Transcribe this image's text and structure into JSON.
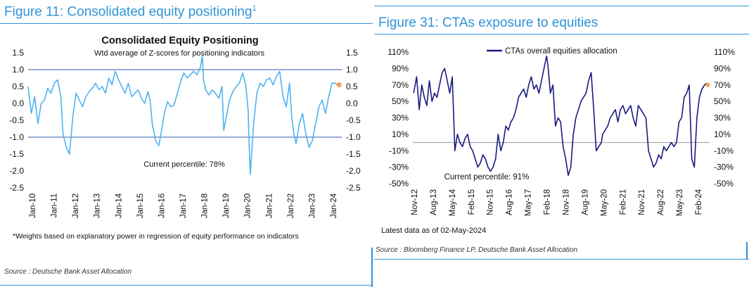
{
  "left": {
    "figure_title": "Figure 11: Consolidated equity positioning",
    "figure_sup": "1",
    "footnote": "*Weights based on explanatory power in regression of equity performance on indicators",
    "source": "Source : Deutsche Bank Asset Allocation"
  },
  "right": {
    "figure_title": "Figure 31: CTAs exposure to equities",
    "latest": "Latest data as of 02-May-2024",
    "source": "Source : Bloomberg Finance LP, Deutsche Bank Asset Allocation"
  },
  "chart_data": [
    {
      "type": "line",
      "title": "Consolidated Equity Positioning",
      "subtitle": "Wtd average of Z-scores for positioning indicators",
      "annotation": "Current percentile: 78%",
      "ylim": [
        -2.5,
        1.5
      ],
      "y_ticks": [
        "1.5",
        "1.0",
        "0.5",
        "0.0",
        "-0.5",
        "-1.0",
        "-1.5",
        "-2.0",
        "-2.5"
      ],
      "x_ticks": [
        "Jan-10",
        "Jan-11",
        "Jan-12",
        "Jan-13",
        "Jan-14",
        "Jan-15",
        "Jan-16",
        "Jan-17",
        "Jan-18",
        "Jan-19",
        "Jan-20",
        "Jan-21",
        "Jan-22",
        "Jan-23",
        "Jan-24"
      ],
      "reference_lines": [
        1.0,
        -1.0
      ],
      "line_color": "#4fb3ef",
      "marker_color": "#f5a04a",
      "series": [
        {
          "x": [
            2010.0,
            2010.15,
            2010.3,
            2010.45,
            2010.6,
            2010.75,
            2010.9,
            2011.05,
            2011.2,
            2011.35,
            2011.5,
            2011.6,
            2011.75,
            2011.9,
            2012.05,
            2012.2,
            2012.35,
            2012.5,
            2012.65,
            2012.8,
            2012.95,
            2013.1,
            2013.25,
            2013.4,
            2013.55,
            2013.7,
            2013.85,
            2014.0,
            2014.15,
            2014.3,
            2014.45,
            2014.6,
            2014.75,
            2014.9,
            2015.05,
            2015.2,
            2015.35,
            2015.5,
            2015.6,
            2015.7,
            2015.85,
            2016.0,
            2016.1,
            2016.25,
            2016.4,
            2016.55,
            2016.7,
            2016.85,
            2017.0,
            2017.15,
            2017.3,
            2017.45,
            2017.6,
            2017.75,
            2017.9,
            2018.0,
            2018.05,
            2018.15,
            2018.3,
            2018.45,
            2018.6,
            2018.75,
            2018.9,
            2018.98,
            2019.1,
            2019.25,
            2019.4,
            2019.55,
            2019.7,
            2019.85,
            2020.0,
            2020.1,
            2020.15,
            2020.2,
            2020.35,
            2020.5,
            2020.65,
            2020.8,
            2020.95,
            2021.1,
            2021.25,
            2021.4,
            2021.55,
            2021.7,
            2021.85,
            2022.0,
            2022.1,
            2022.2,
            2022.3,
            2022.45,
            2022.6,
            2022.75,
            2022.9,
            2023.05,
            2023.2,
            2023.35,
            2023.5,
            2023.65,
            2023.8,
            2023.95,
            2024.1,
            2024.25
          ],
          "y": [
            0.5,
            -0.3,
            0.2,
            -0.6,
            0.0,
            0.1,
            0.45,
            0.3,
            0.6,
            0.7,
            0.2,
            -0.9,
            -1.3,
            -1.5,
            -0.4,
            0.3,
            0.1,
            -0.1,
            0.2,
            0.35,
            0.45,
            0.6,
            0.4,
            0.5,
            0.3,
            0.75,
            0.55,
            0.95,
            0.7,
            0.5,
            0.3,
            0.6,
            0.2,
            0.3,
            0.4,
            0.15,
            0.0,
            0.35,
            0.1,
            -0.6,
            -1.1,
            -1.25,
            -0.9,
            -0.3,
            0.05,
            -0.1,
            -0.05,
            0.3,
            0.65,
            0.9,
            0.75,
            0.85,
            0.95,
            0.85,
            1.05,
            1.4,
            0.7,
            0.4,
            0.25,
            0.4,
            0.3,
            0.15,
            0.5,
            -0.8,
            -0.4,
            0.1,
            0.35,
            0.5,
            0.6,
            0.9,
            0.5,
            -0.2,
            -1.3,
            -2.1,
            -0.6,
            0.3,
            0.6,
            0.5,
            0.7,
            0.75,
            0.55,
            0.8,
            0.95,
            0.2,
            -0.1,
            0.6,
            -0.4,
            -0.9,
            -1.2,
            -0.6,
            -0.3,
            -0.9,
            -1.3,
            -1.1,
            -0.6,
            -0.1,
            0.1,
            -0.3,
            0.2,
            0.6,
            0.6,
            0.5
          ]
        }
      ],
      "current_marker": {
        "x": 2024.28,
        "y": 0.55
      }
    },
    {
      "type": "line",
      "title": "",
      "annotation": "Current percentile: 91%",
      "ylim": [
        -50,
        110
      ],
      "y_ticks": [
        "110%",
        "90%",
        "70%",
        "50%",
        "30%",
        "10%",
        "-10%",
        "-30%",
        "-50%"
      ],
      "x_ticks": [
        "Nov-12",
        "Aug-13",
        "May-14",
        "Feb-15",
        "Nov-15",
        "Aug-16",
        "May-17",
        "Feb-18",
        "Nov-18",
        "Aug-19",
        "May-20",
        "Feb-21",
        "Nov-21",
        "Aug-22",
        "May-23",
        "Feb-24"
      ],
      "reference_lines": [
        0
      ],
      "line_color": "#1a1a80",
      "marker_color": "#f5a04a",
      "series": [
        {
          "name": "CTAs overall equities allocation",
          "x": [
            2012.83,
            2012.95,
            2013.05,
            2013.15,
            2013.25,
            2013.35,
            2013.45,
            2013.55,
            2013.65,
            2013.75,
            2013.85,
            2013.95,
            2014.05,
            2014.15,
            2014.25,
            2014.35,
            2014.45,
            2014.55,
            2014.65,
            2014.75,
            2014.85,
            2014.95,
            2015.05,
            2015.15,
            2015.25,
            2015.35,
            2015.45,
            2015.55,
            2015.65,
            2015.75,
            2015.85,
            2015.95,
            2016.05,
            2016.15,
            2016.25,
            2016.35,
            2016.45,
            2016.55,
            2016.65,
            2016.75,
            2016.85,
            2016.95,
            2017.05,
            2017.15,
            2017.25,
            2017.35,
            2017.45,
            2017.55,
            2017.65,
            2017.75,
            2017.85,
            2017.95,
            2018.05,
            2018.1,
            2018.2,
            2018.3,
            2018.4,
            2018.5,
            2018.6,
            2018.7,
            2018.8,
            2018.9,
            2019.0,
            2019.1,
            2019.2,
            2019.3,
            2019.4,
            2019.5,
            2019.6,
            2019.7,
            2019.8,
            2019.9,
            2020.0,
            2020.1,
            2020.2,
            2020.25,
            2020.35,
            2020.45,
            2020.55,
            2020.65,
            2020.75,
            2020.85,
            2020.95,
            2021.05,
            2021.15,
            2021.25,
            2021.35,
            2021.45,
            2021.55,
            2021.65,
            2021.75,
            2021.85,
            2021.95,
            2022.05,
            2022.15,
            2022.25,
            2022.35,
            2022.45,
            2022.55,
            2022.65,
            2022.75,
            2022.85,
            2022.95,
            2023.05,
            2023.15,
            2023.25,
            2023.35,
            2023.45,
            2023.55,
            2023.65,
            2023.75,
            2023.85,
            2023.95,
            2024.05,
            2024.15,
            2024.25,
            2024.33
          ],
          "y": [
            60,
            80,
            40,
            70,
            55,
            45,
            75,
            50,
            60,
            55,
            70,
            85,
            90,
            75,
            60,
            80,
            -10,
            10,
            0,
            -5,
            5,
            10,
            -5,
            -10,
            -20,
            -30,
            -25,
            -15,
            -20,
            -30,
            -35,
            -30,
            -20,
            10,
            -10,
            0,
            20,
            15,
            25,
            30,
            40,
            55,
            60,
            65,
            55,
            70,
            80,
            65,
            70,
            60,
            75,
            90,
            105,
            95,
            60,
            70,
            20,
            30,
            25,
            -5,
            -20,
            -40,
            -30,
            10,
            30,
            40,
            50,
            55,
            60,
            75,
            85,
            40,
            -10,
            -5,
            0,
            10,
            15,
            20,
            30,
            35,
            40,
            25,
            40,
            45,
            35,
            40,
            45,
            30,
            20,
            45,
            40,
            35,
            30,
            -10,
            -20,
            -30,
            -25,
            -15,
            -20,
            -5,
            -10,
            -5,
            0,
            -5,
            0,
            25,
            30,
            55,
            60,
            70,
            -20,
            -30,
            30,
            55,
            65,
            70,
            72
          ]
        }
      ],
      "current_marker": {
        "x": 2024.38,
        "y": 70
      }
    }
  ]
}
